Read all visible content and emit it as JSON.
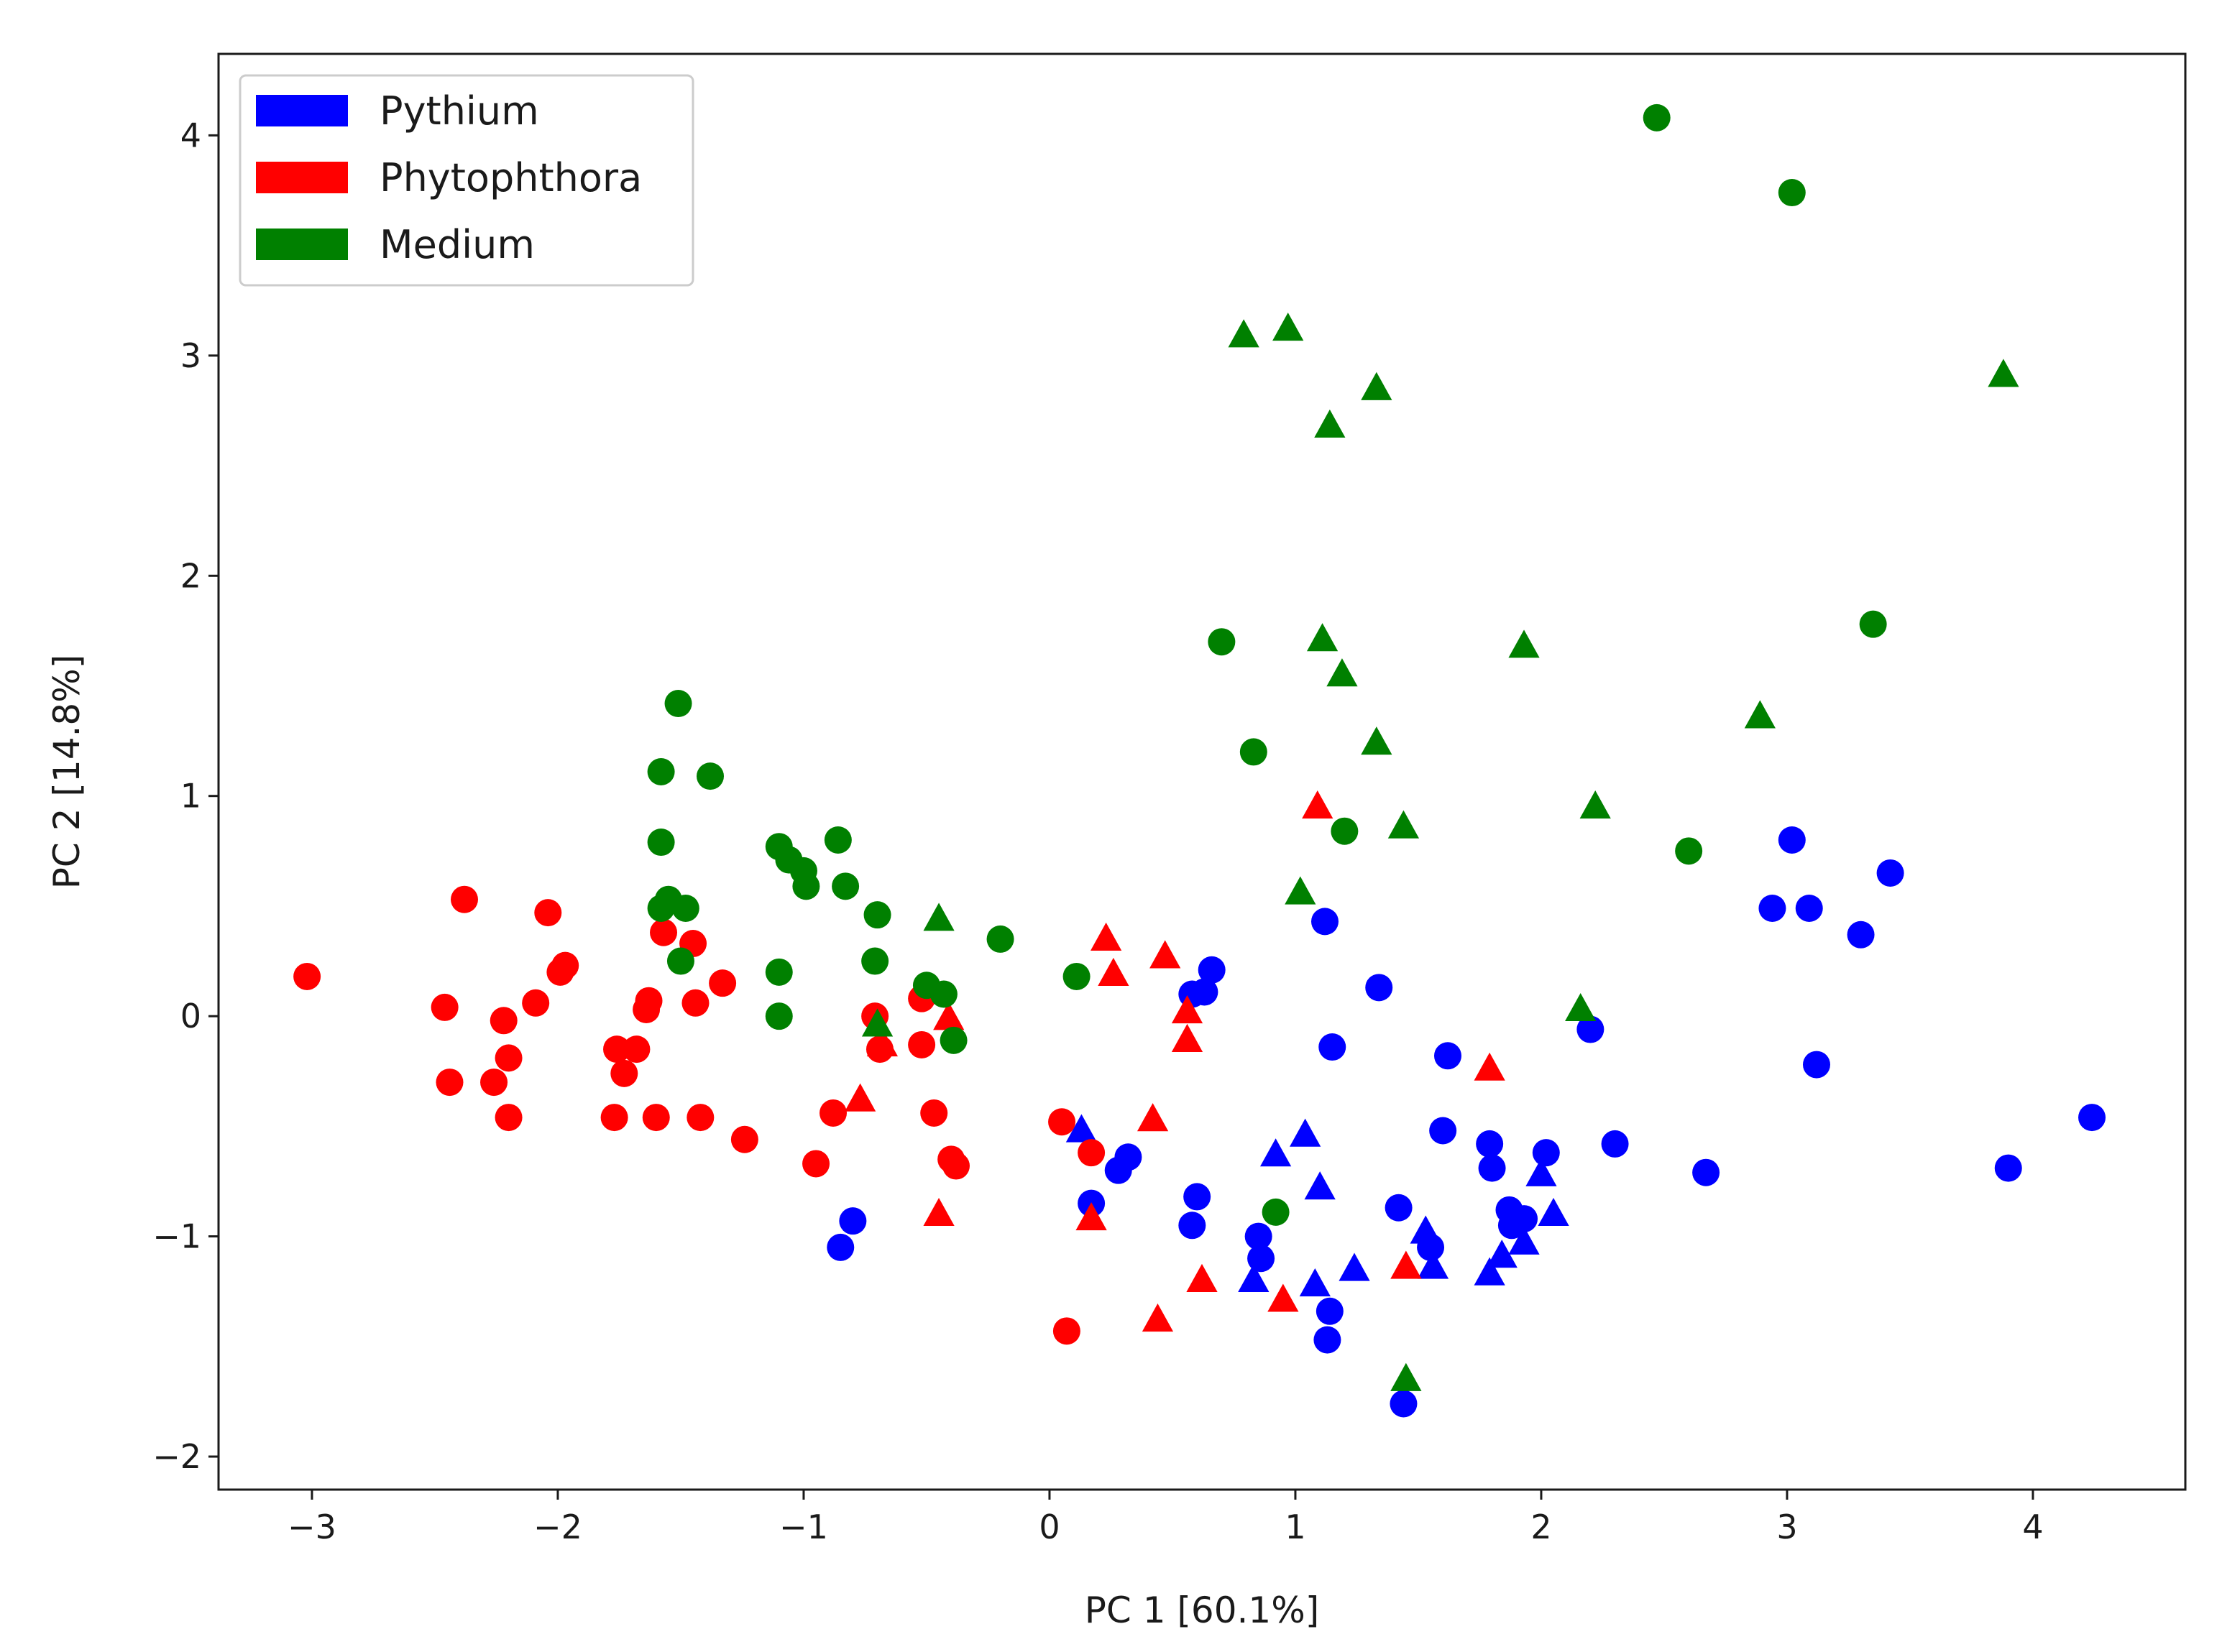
{
  "chart_data": {
    "type": "scatter",
    "title": "",
    "xlabel": "PC 1 [60.1%]",
    "ylabel": "PC 2 [14.8%]",
    "xlim": [
      -3.38,
      4.62
    ],
    "ylim": [
      -2.15,
      4.37
    ],
    "x_ticks": [
      -3,
      -2,
      -1,
      0,
      1,
      2,
      3,
      4
    ],
    "y_ticks": [
      -2,
      -1,
      0,
      1,
      2,
      3,
      4
    ],
    "x_tick_labels": [
      "−3",
      "−2",
      "−1",
      "0",
      "1",
      "2",
      "3",
      "4"
    ],
    "y_tick_labels": [
      "−2",
      "−1",
      "0",
      "1",
      "2",
      "3",
      "4"
    ],
    "grid": false,
    "legend_position": "top-left",
    "legend": [
      {
        "label": "Pythium",
        "color": "#0000ff"
      },
      {
        "label": "Phytophthora",
        "color": "#ff0000"
      },
      {
        "label": "Medium",
        "color": "#008000"
      }
    ],
    "series": [
      {
        "name": "Pythium",
        "color": "#0000ff",
        "marker": "circle",
        "points": [
          [
            -0.85,
            -1.05
          ],
          [
            -0.8,
            -0.93
          ],
          [
            0.17,
            -0.85
          ],
          [
            0.28,
            -0.7
          ],
          [
            0.32,
            -0.64
          ],
          [
            0.58,
            0.1
          ],
          [
            0.63,
            0.11
          ],
          [
            0.66,
            0.21
          ],
          [
            0.6,
            -0.82
          ],
          [
            0.58,
            -0.95
          ],
          [
            0.85,
            -1.0
          ],
          [
            0.86,
            -1.1
          ],
          [
            1.12,
            0.43
          ],
          [
            1.15,
            -0.14
          ],
          [
            1.14,
            -1.34
          ],
          [
            1.13,
            -1.47
          ],
          [
            1.34,
            0.13
          ],
          [
            1.42,
            -0.87
          ],
          [
            1.55,
            -1.05
          ],
          [
            1.6,
            -0.52
          ],
          [
            1.62,
            -0.18
          ],
          [
            1.79,
            -0.58
          ],
          [
            1.8,
            -0.69
          ],
          [
            1.87,
            -0.88
          ],
          [
            1.88,
            -0.95
          ],
          [
            1.93,
            -0.92
          ],
          [
            2.02,
            -0.62
          ],
          [
            2.2,
            -0.06
          ],
          [
            2.3,
            -0.58
          ],
          [
            2.67,
            -0.71
          ],
          [
            2.94,
            0.49
          ],
          [
            3.02,
            0.8
          ],
          [
            3.09,
            0.49
          ],
          [
            3.12,
            -0.22
          ],
          [
            3.3,
            0.37
          ],
          [
            3.42,
            0.65
          ],
          [
            3.9,
            -0.69
          ],
          [
            4.24,
            -0.46
          ],
          [
            1.44,
            -1.76
          ]
        ]
      },
      {
        "name": "Pythium",
        "color": "#0000ff",
        "marker": "triangle",
        "points": [
          [
            0.13,
            -0.52
          ],
          [
            0.92,
            -0.63
          ],
          [
            0.83,
            -1.2
          ],
          [
            1.04,
            -0.54
          ],
          [
            1.08,
            -1.22
          ],
          [
            1.1,
            -0.78
          ],
          [
            1.24,
            -1.15
          ],
          [
            1.53,
            -0.98
          ],
          [
            1.56,
            -1.14
          ],
          [
            1.79,
            -1.17
          ],
          [
            1.84,
            -1.09
          ],
          [
            1.93,
            -1.03
          ],
          [
            2.0,
            -0.72
          ],
          [
            2.05,
            -0.9
          ]
        ]
      },
      {
        "name": "Phytophthora",
        "color": "#ff0000",
        "marker": "circle",
        "points": [
          [
            -3.02,
            0.18
          ],
          [
            -2.46,
            0.04
          ],
          [
            -2.44,
            -0.3
          ],
          [
            -2.38,
            0.53
          ],
          [
            -2.26,
            -0.3
          ],
          [
            -2.22,
            -0.02
          ],
          [
            -2.2,
            -0.46
          ],
          [
            -2.2,
            -0.19
          ],
          [
            -2.09,
            0.06
          ],
          [
            -2.04,
            0.47
          ],
          [
            -1.99,
            0.2
          ],
          [
            -1.97,
            0.23
          ],
          [
            -1.77,
            -0.46
          ],
          [
            -1.76,
            -0.15
          ],
          [
            -1.73,
            -0.26
          ],
          [
            -1.68,
            -0.15
          ],
          [
            -1.64,
            0.03
          ],
          [
            -1.63,
            0.07
          ],
          [
            -1.6,
            -0.46
          ],
          [
            -1.57,
            0.38
          ],
          [
            -1.45,
            0.33
          ],
          [
            -1.44,
            0.06
          ],
          [
            -1.42,
            -0.46
          ],
          [
            -1.33,
            0.15
          ],
          [
            -1.24,
            -0.56
          ],
          [
            -0.95,
            -0.67
          ],
          [
            -0.88,
            -0.44
          ],
          [
            -0.71,
            0.0
          ],
          [
            -0.69,
            -0.15
          ],
          [
            -0.52,
            0.08
          ],
          [
            -0.52,
            -0.13
          ],
          [
            -0.47,
            -0.44
          ],
          [
            -0.4,
            -0.65
          ],
          [
            -0.38,
            -0.68
          ],
          [
            0.05,
            -0.48
          ],
          [
            0.17,
            -0.62
          ],
          [
            0.07,
            -1.43
          ]
        ]
      },
      {
        "name": "Phytophthora",
        "color": "#ff0000",
        "marker": "triangle",
        "points": [
          [
            -0.77,
            -0.38
          ],
          [
            -0.68,
            -0.13
          ],
          [
            -0.45,
            -0.9
          ],
          [
            -0.41,
            -0.01
          ],
          [
            0.17,
            -0.92
          ],
          [
            0.23,
            0.35
          ],
          [
            0.26,
            0.19
          ],
          [
            0.42,
            -0.47
          ],
          [
            0.47,
            0.27
          ],
          [
            0.56,
            0.02
          ],
          [
            0.56,
            -0.11
          ],
          [
            0.62,
            -1.2
          ],
          [
            0.44,
            -1.38
          ],
          [
            0.95,
            -1.29
          ],
          [
            1.09,
            0.95
          ],
          [
            1.45,
            -1.14
          ],
          [
            1.79,
            -0.24
          ]
        ]
      },
      {
        "name": "Medium",
        "color": "#008000",
        "marker": "circle",
        "points": [
          [
            -1.58,
            1.11
          ],
          [
            -1.58,
            0.79
          ],
          [
            -1.58,
            0.49
          ],
          [
            -1.55,
            0.53
          ],
          [
            -1.51,
            1.42
          ],
          [
            -1.5,
            0.25
          ],
          [
            -1.48,
            0.49
          ],
          [
            -1.38,
            1.09
          ],
          [
            -1.1,
            0.2
          ],
          [
            -1.1,
            0.0
          ],
          [
            -1.1,
            0.77
          ],
          [
            -1.06,
            0.71
          ],
          [
            -1.0,
            0.66
          ],
          [
            -0.99,
            0.59
          ],
          [
            -0.86,
            0.8
          ],
          [
            -0.83,
            0.59
          ],
          [
            -0.7,
            0.46
          ],
          [
            -0.71,
            0.25
          ],
          [
            -0.5,
            0.14
          ],
          [
            -0.43,
            0.1
          ],
          [
            -0.39,
            -0.11
          ],
          [
            -0.2,
            0.35
          ],
          [
            0.11,
            0.18
          ],
          [
            0.7,
            1.7
          ],
          [
            0.83,
            1.2
          ],
          [
            0.92,
            -0.89
          ],
          [
            1.2,
            0.84
          ],
          [
            2.6,
            0.75
          ],
          [
            3.35,
            1.78
          ],
          [
            2.47,
            4.08
          ],
          [
            3.02,
            3.74
          ]
        ]
      },
      {
        "name": "Medium",
        "color": "#008000",
        "marker": "triangle",
        "points": [
          [
            -0.7,
            -0.04
          ],
          [
            -0.45,
            0.44
          ],
          [
            0.79,
            3.09
          ],
          [
            0.97,
            3.12
          ],
          [
            1.02,
            0.56
          ],
          [
            1.11,
            1.71
          ],
          [
            1.14,
            2.68
          ],
          [
            1.19,
            1.55
          ],
          [
            1.33,
            2.85
          ],
          [
            1.33,
            1.24
          ],
          [
            1.44,
            0.86
          ],
          [
            1.45,
            -1.65
          ],
          [
            1.93,
            1.68
          ],
          [
            2.16,
            0.03
          ],
          [
            2.22,
            0.95
          ],
          [
            2.89,
            1.36
          ],
          [
            3.88,
            2.91
          ]
        ]
      }
    ]
  }
}
